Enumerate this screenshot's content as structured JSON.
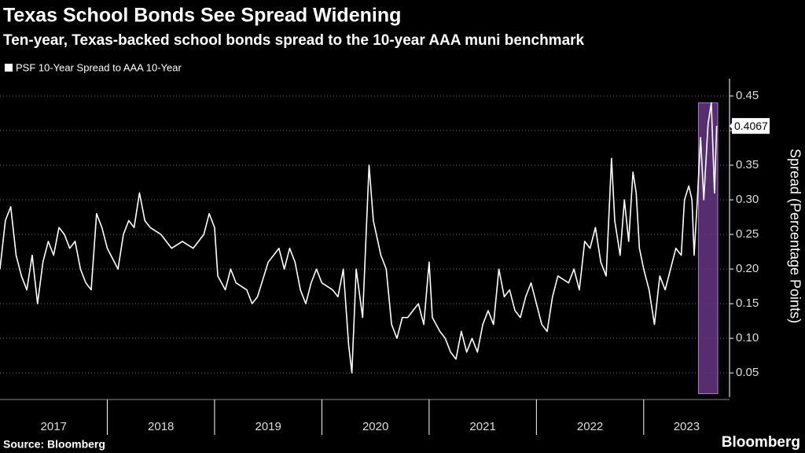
{
  "chart_data": {
    "type": "line",
    "title": "Texas School Bonds See Spread Widening",
    "subtitle": "Ten-year, Texas-backed school bonds spread to the 10-year AAA muni benchmark",
    "y_label": "Spread (Percentage Points)",
    "source": "Source: Bloomberg",
    "brand": "Bloomberg",
    "grid": true,
    "xlim": [
      2017.0,
      2023.8
    ],
    "xticks": [
      {
        "value": 2017,
        "label": "2017"
      },
      {
        "value": 2018,
        "label": "2018"
      },
      {
        "value": 2019,
        "label": "2019"
      },
      {
        "value": 2020,
        "label": "2020"
      },
      {
        "value": 2021,
        "label": "2021"
      },
      {
        "value": 2022,
        "label": "2022"
      },
      {
        "value": 2023,
        "label": "2023"
      }
    ],
    "ylim": [
      0.015,
      0.475
    ],
    "yticks": [
      0.05,
      {
        "value": 0.1,
        "label": "0.10"
      },
      0.15,
      {
        "value": 0.2,
        "label": "0.20"
      },
      0.25,
      {
        "value": 0.3,
        "label": "0.30"
      },
      0.35,
      {
        "value": 0.4,
        "label": "0.40"
      },
      0.45
    ],
    "highlight_x": [
      2023.51,
      2023.69
    ],
    "highlight_y": [
      0.02,
      0.44
    ],
    "highlight_color": "#6b3a8c",
    "series": [
      {
        "name": "PSF 10-Year Spread to AAA 10-Year",
        "color": "#ffffff",
        "x": [
          2017.0,
          2017.05,
          2017.1,
          2017.15,
          2017.2,
          2017.25,
          2017.3,
          2017.35,
          2017.4,
          2017.45,
          2017.5,
          2017.55,
          2017.6,
          2017.65,
          2017.7,
          2017.75,
          2017.8,
          2017.85,
          2017.9,
          2017.95,
          2018.0,
          2018.1,
          2018.15,
          2018.2,
          2018.25,
          2018.3,
          2018.35,
          2018.4,
          2018.5,
          2018.6,
          2018.7,
          2018.8,
          2018.9,
          2018.95,
          2019.0,
          2019.03,
          2019.1,
          2019.15,
          2019.2,
          2019.3,
          2019.35,
          2019.4,
          2019.5,
          2019.6,
          2019.65,
          2019.7,
          2019.75,
          2019.8,
          2019.85,
          2019.9,
          2019.95,
          2020.0,
          2020.1,
          2020.15,
          2020.2,
          2020.25,
          2020.28,
          2020.32,
          2020.38,
          2020.44,
          2020.48,
          2020.55,
          2020.6,
          2020.65,
          2020.7,
          2020.75,
          2020.8,
          2020.9,
          2020.95,
          2021.0,
          2021.03,
          2021.1,
          2021.15,
          2021.2,
          2021.25,
          2021.3,
          2021.35,
          2021.4,
          2021.45,
          2021.5,
          2021.55,
          2021.6,
          2021.65,
          2021.7,
          2021.75,
          2021.8,
          2021.85,
          2021.9,
          2021.95,
          2022.0,
          2022.05,
          2022.1,
          2022.15,
          2022.2,
          2022.3,
          2022.35,
          2022.4,
          2022.45,
          2022.5,
          2022.55,
          2022.6,
          2022.65,
          2022.7,
          2022.73,
          2022.78,
          2022.82,
          2022.86,
          2022.9,
          2022.93,
          2022.96,
          2023.0,
          2023.05,
          2023.1,
          2023.15,
          2023.2,
          2023.25,
          2023.3,
          2023.35,
          2023.38,
          2023.42,
          2023.45,
          2023.47,
          2023.5,
          2023.53,
          2023.56,
          2023.6,
          2023.63,
          2023.66,
          2023.68
        ],
        "values": [
          0.2,
          0.27,
          0.29,
          0.22,
          0.19,
          0.17,
          0.22,
          0.15,
          0.21,
          0.24,
          0.22,
          0.26,
          0.25,
          0.23,
          0.24,
          0.2,
          0.18,
          0.17,
          0.28,
          0.26,
          0.23,
          0.2,
          0.25,
          0.27,
          0.26,
          0.31,
          0.27,
          0.26,
          0.25,
          0.23,
          0.24,
          0.23,
          0.25,
          0.28,
          0.26,
          0.19,
          0.17,
          0.2,
          0.18,
          0.17,
          0.15,
          0.16,
          0.21,
          0.23,
          0.2,
          0.23,
          0.21,
          0.17,
          0.15,
          0.18,
          0.2,
          0.18,
          0.17,
          0.16,
          0.2,
          0.09,
          0.05,
          0.2,
          0.13,
          0.35,
          0.27,
          0.22,
          0.2,
          0.12,
          0.1,
          0.13,
          0.13,
          0.15,
          0.12,
          0.21,
          0.13,
          0.11,
          0.1,
          0.08,
          0.07,
          0.11,
          0.08,
          0.1,
          0.08,
          0.12,
          0.14,
          0.12,
          0.2,
          0.16,
          0.17,
          0.14,
          0.13,
          0.16,
          0.18,
          0.15,
          0.12,
          0.11,
          0.16,
          0.19,
          0.18,
          0.2,
          0.17,
          0.24,
          0.23,
          0.26,
          0.21,
          0.19,
          0.36,
          0.27,
          0.22,
          0.3,
          0.24,
          0.34,
          0.31,
          0.23,
          0.2,
          0.17,
          0.12,
          0.19,
          0.17,
          0.2,
          0.23,
          0.22,
          0.3,
          0.32,
          0.3,
          0.22,
          0.3,
          0.39,
          0.3,
          0.41,
          0.44,
          0.31,
          0.4067
        ]
      }
    ]
  }
}
